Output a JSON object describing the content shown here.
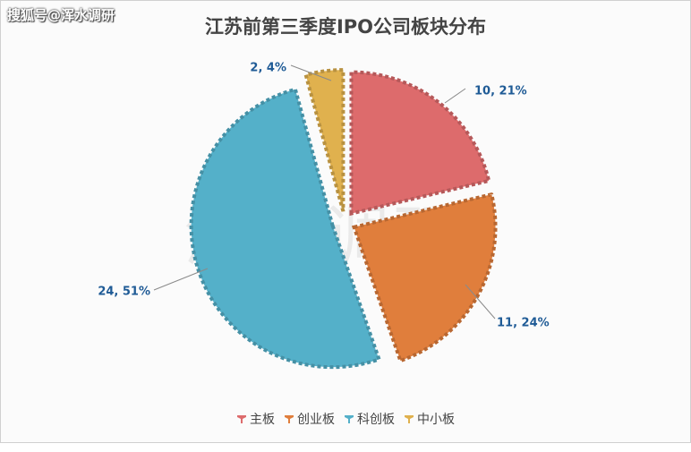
{
  "source_tag": "搜狐号@浑水调研",
  "watermark": "浑水调研",
  "chart_data": {
    "type": "pie",
    "title": "江苏前第三季度IPO公司板块分布",
    "categories": [
      "主板",
      "创业板",
      "科创板",
      "中小板"
    ],
    "values": [
      10,
      11,
      24,
      2
    ],
    "percent_labels": [
      "10, 21%",
      "11, 24%",
      "24, 51%",
      "2, 4%"
    ],
    "colors": [
      "#dd6b6c",
      "#e07e3c",
      "#54b0c9",
      "#e0b14e"
    ],
    "explode": true,
    "legend_position": "bottom"
  }
}
